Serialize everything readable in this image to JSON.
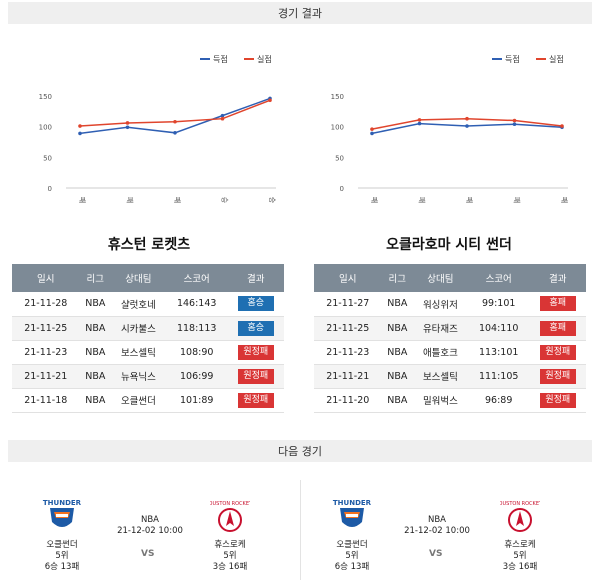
{
  "sections": {
    "results_title": "경기 결과",
    "next_title": "다음 경기"
  },
  "legend": {
    "score": "득점",
    "allowed": "실점",
    "score_color": "#2f5fb3",
    "allowed_color": "#e0452d"
  },
  "chart_data": [
    {
      "type": "line",
      "categories": [
        "패",
        "패",
        "패",
        "승",
        "승"
      ],
      "ylim": [
        0,
        150
      ],
      "yticks": [
        0,
        50,
        100,
        150
      ],
      "series": [
        {
          "name": "득점",
          "values": [
            89,
            99,
            90,
            118,
            146
          ]
        },
        {
          "name": "실점",
          "values": [
            101,
            106,
            108,
            113,
            143
          ]
        }
      ],
      "legend": "top-right",
      "grid": false
    },
    {
      "type": "line",
      "categories": [
        "패",
        "패",
        "패",
        "패",
        "패"
      ],
      "ylim": [
        0,
        150
      ],
      "yticks": [
        0,
        50,
        100,
        150
      ],
      "series": [
        {
          "name": "득점",
          "values": [
            89,
            105,
            101,
            104,
            99
          ]
        },
        {
          "name": "실점",
          "values": [
            96,
            111,
            113,
            110,
            101
          ]
        }
      ],
      "legend": "top-right",
      "grid": false
    }
  ],
  "teams": [
    {
      "name": "휴스턴 로켓츠",
      "headers": [
        "일시",
        "리그",
        "상대팀",
        "스코어",
        "결과"
      ],
      "games": [
        {
          "date": "21-11-28",
          "league": "NBA",
          "opponent": "샬럿호네",
          "score": "146:143",
          "result": "홈승",
          "color": "#1f6fb2"
        },
        {
          "date": "21-11-25",
          "league": "NBA",
          "opponent": "시카불스",
          "score": "118:113",
          "result": "홈승",
          "color": "#1f6fb2"
        },
        {
          "date": "21-11-23",
          "league": "NBA",
          "opponent": "보스셀틱",
          "score": "108:90",
          "result": "원정패",
          "color": "#d93535"
        },
        {
          "date": "21-11-21",
          "league": "NBA",
          "opponent": "뉴욕닉스",
          "score": "106:99",
          "result": "원정패",
          "color": "#d93535"
        },
        {
          "date": "21-11-18",
          "league": "NBA",
          "opponent": "오클썬더",
          "score": "101:89",
          "result": "원정패",
          "color": "#d93535"
        }
      ]
    },
    {
      "name": "오클라호마 시티 썬더",
      "headers": [
        "일시",
        "리그",
        "상대팀",
        "스코어",
        "결과"
      ],
      "games": [
        {
          "date": "21-11-27",
          "league": "NBA",
          "opponent": "워싱위저",
          "score": "99:101",
          "result": "홈패",
          "color": "#d93535"
        },
        {
          "date": "21-11-25",
          "league": "NBA",
          "opponent": "유타재즈",
          "score": "104:110",
          "result": "홈패",
          "color": "#d93535"
        },
        {
          "date": "21-11-23",
          "league": "NBA",
          "opponent": "애틀호크",
          "score": "113:101",
          "result": "원정패",
          "color": "#d93535"
        },
        {
          "date": "21-11-21",
          "league": "NBA",
          "opponent": "보스셀틱",
          "score": "111:105",
          "result": "원정패",
          "color": "#d93535"
        },
        {
          "date": "21-11-20",
          "league": "NBA",
          "opponent": "밀워벅스",
          "score": "96:89",
          "result": "원정패",
          "color": "#d93535"
        }
      ]
    }
  ],
  "next_games": [
    {
      "league": "NBA",
      "datetime": "21-12-02 10:00",
      "vs": "VS",
      "home": {
        "name": "오클썬더",
        "rank": "5위",
        "record": "6승 13패",
        "logo": "thunder-logo"
      },
      "away": {
        "name": "휴스로케",
        "rank": "5위",
        "record": "3승 16패",
        "logo": "rockets-logo"
      }
    },
    {
      "league": "NBA",
      "datetime": "21-12-02 10:00",
      "vs": "VS",
      "home": {
        "name": "오클썬더",
        "rank": "5위",
        "record": "6승 13패",
        "logo": "thunder-logo"
      },
      "away": {
        "name": "휴스로케",
        "rank": "5위",
        "record": "3승 16패",
        "logo": "rockets-logo"
      }
    }
  ]
}
